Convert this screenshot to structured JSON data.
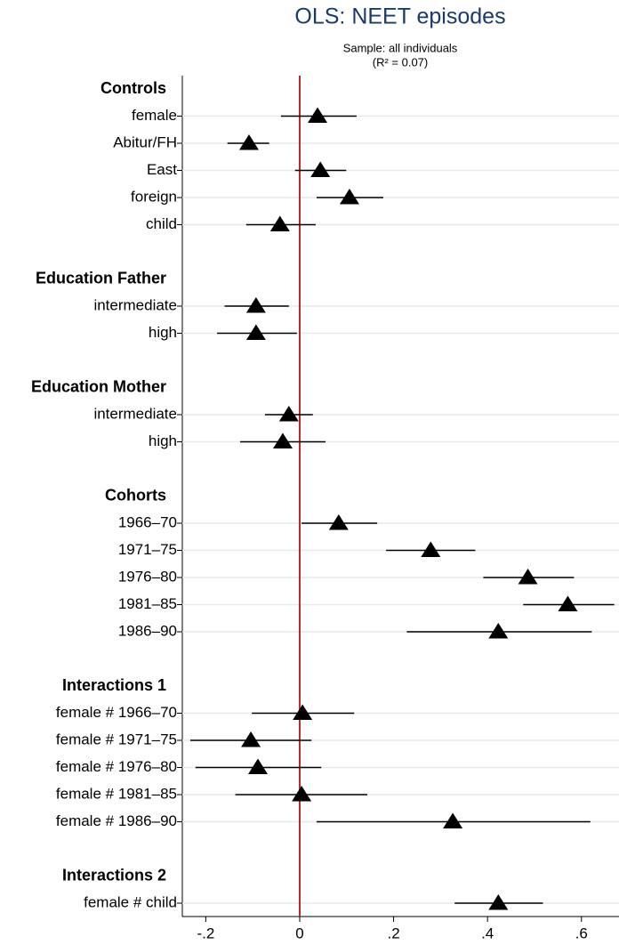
{
  "chart_data": {
    "type": "coefplot",
    "title": "OLS: NEET episodes",
    "subtitle": [
      "Sample: all individuals",
      "(R² =  0.07)"
    ],
    "groups": [
      {
        "name": "Controls",
        "categories": [
          "female",
          "Abitur/FH",
          "East",
          "foreign",
          "child"
        ],
        "values": [
          0.038,
          -0.108,
          0.044,
          0.106,
          -0.042
        ],
        "lower": [
          -0.04,
          -0.154,
          -0.01,
          0.036,
          -0.114
        ],
        "upper": [
          0.121,
          -0.065,
          0.099,
          0.178,
          0.034
        ]
      },
      {
        "name": "Education Father",
        "categories": [
          "intermediate",
          "high"
        ],
        "values": [
          -0.093,
          -0.093
        ],
        "lower": [
          -0.16,
          -0.176
        ],
        "upper": [
          -0.023,
          -0.006
        ]
      },
      {
        "name": "Education Mother",
        "categories": [
          "intermediate",
          "high"
        ],
        "values": [
          -0.023,
          -0.036
        ],
        "lower": [
          -0.074,
          -0.127
        ],
        "upper": [
          0.028,
          0.055
        ]
      },
      {
        "name": "Cohorts",
        "categories": [
          "1966–70",
          "1971–75",
          "1976–80",
          "1981–85",
          "1986–90"
        ],
        "values": [
          0.083,
          0.279,
          0.486,
          0.571,
          0.423
        ],
        "lower": [
          0.004,
          0.184,
          0.391,
          0.476,
          0.228
        ],
        "upper": [
          0.165,
          0.374,
          0.584,
          0.67,
          0.622
        ]
      },
      {
        "name": "Interactions 1",
        "categories": [
          "female # 1966–70",
          "female # 1971–75",
          "female # 1976–80",
          "female # 1981–85",
          "female # 1986–90"
        ],
        "values": [
          0.006,
          -0.104,
          -0.089,
          0.004,
          0.326
        ],
        "lower": [
          -0.102,
          -0.233,
          -0.222,
          -0.137,
          0.036
        ],
        "upper": [
          0.116,
          0.025,
          0.046,
          0.144,
          0.619
        ]
      },
      {
        "name": "Interactions 2",
        "categories": [
          "female # child"
        ],
        "values": [
          0.423
        ],
        "lower": [
          0.33
        ],
        "upper": [
          0.518
        ]
      }
    ],
    "xlim": [
      -0.25,
      0.68
    ],
    "xticks": [
      {
        "value": -0.2,
        "label": "-.2"
      },
      0,
      {
        "value": 0.2,
        "label": ".2"
      },
      {
        "value": 0.4,
        "label": ".4"
      },
      {
        "value": 0.6,
        "label": ".6"
      }
    ],
    "reference_line": 0,
    "reference_color": "#c0262d",
    "marker_color": "#000000",
    "grid": true
  }
}
